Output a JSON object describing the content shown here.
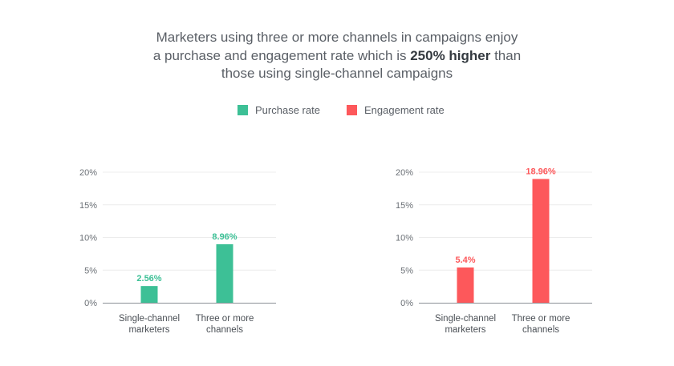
{
  "title": {
    "line1": "Marketers using three or more channels in campaigns enjoy",
    "line2_pre": "a purchase and engagement rate which is ",
    "line2_highlight": "250% higher",
    "line2_post": " than",
    "line3": "those using single-channel campaigns"
  },
  "legend": [
    {
      "label": "Purchase rate",
      "color": "#3dc096"
    },
    {
      "label": "Engagement rate",
      "color": "#fd585b"
    }
  ],
  "chart_data": [
    {
      "type": "bar",
      "categories": [
        [
          "Single-channel",
          "marketers"
        ],
        [
          "Three or more",
          "channels"
        ]
      ],
      "series": [
        {
          "name": "Purchase rate",
          "values": [
            2.56,
            8.96
          ],
          "color": "#3dc096"
        }
      ],
      "data_labels": [
        "2.56%",
        "8.96%"
      ],
      "yticks": [
        "0%",
        "5%",
        "10%",
        "15%",
        "20%"
      ],
      "ylim": [
        0,
        20
      ],
      "grid": true
    },
    {
      "type": "bar",
      "categories": [
        [
          "Single-channel",
          "marketers"
        ],
        [
          "Three or more",
          "channels"
        ]
      ],
      "series": [
        {
          "name": "Engagement rate",
          "values": [
            5.4,
            18.96
          ],
          "color": "#fd585b"
        }
      ],
      "data_labels": [
        "5.4%",
        "18.96%"
      ],
      "yticks": [
        "0%",
        "5%",
        "10%",
        "15%",
        "20%"
      ],
      "ylim": [
        0,
        20
      ],
      "grid": true
    }
  ]
}
